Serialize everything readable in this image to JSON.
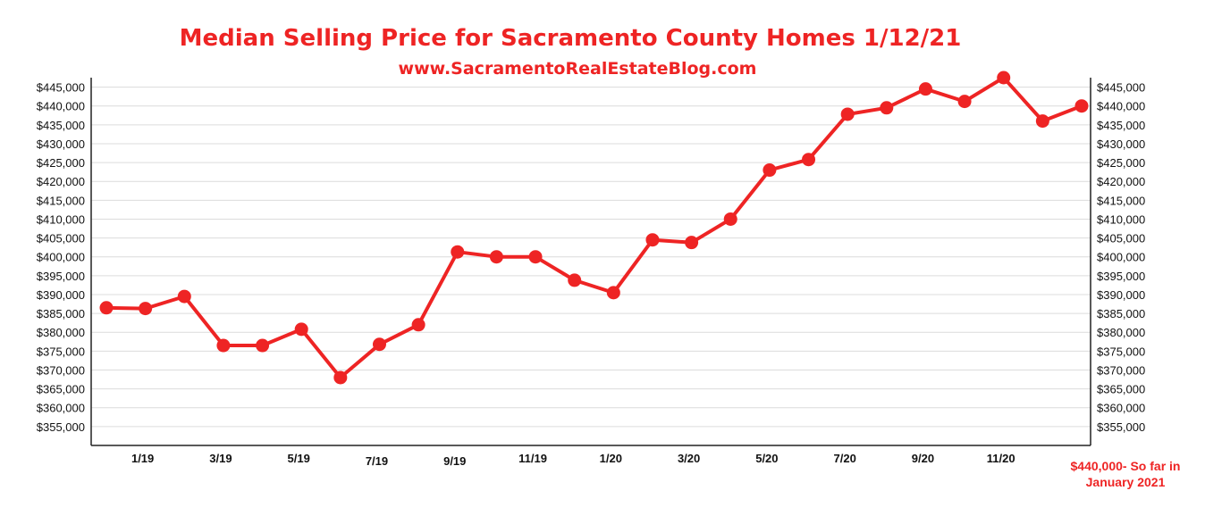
{
  "chart_data": {
    "type": "line",
    "title": "Median Selling Price for Sacramento County Homes 1/12/21",
    "subtitle": "www.SacramentoRealEstateBlog.com",
    "color": "#ee2424",
    "y_ticks": [
      "$445,000",
      "$440,000",
      "$435,000",
      "$430,000",
      "$425,000",
      "$420,000",
      "$415,000",
      "$410,000",
      "$405,000",
      "$400,000",
      "$395,000",
      "$390,000",
      "$385,000",
      "$380,000",
      "$375,000",
      "$370,000",
      "$365,000",
      "$360,000",
      "$355,000"
    ],
    "y_tick_values": [
      445000,
      440000,
      435000,
      430000,
      425000,
      420000,
      415000,
      410000,
      405000,
      400000,
      395000,
      390000,
      385000,
      380000,
      375000,
      370000,
      365000,
      360000,
      355000
    ],
    "ylim": [
      350000,
      447500
    ],
    "x_tick_labels": [
      "1/19",
      "3/19",
      "5/19",
      "7/19",
      "9/19",
      "11/19",
      "1/20",
      "3/20",
      "5/20",
      "7/20",
      "9/20",
      "11/20"
    ],
    "x_tick_indices": [
      1,
      3,
      5,
      7,
      9,
      11,
      13,
      15,
      17,
      19,
      21,
      23
    ],
    "points": [
      386500,
      386300,
      389500,
      376500,
      376500,
      380800,
      368000,
      376800,
      382000,
      401300,
      400000,
      400000,
      393800,
      390500,
      404500,
      403800,
      410000,
      423000,
      425800,
      437800,
      439500,
      444500,
      441200,
      447500,
      436000,
      440000
    ],
    "annotation": [
      "$440,000- So far in",
      "January 2021"
    ],
    "grid": true,
    "legend": "none"
  }
}
